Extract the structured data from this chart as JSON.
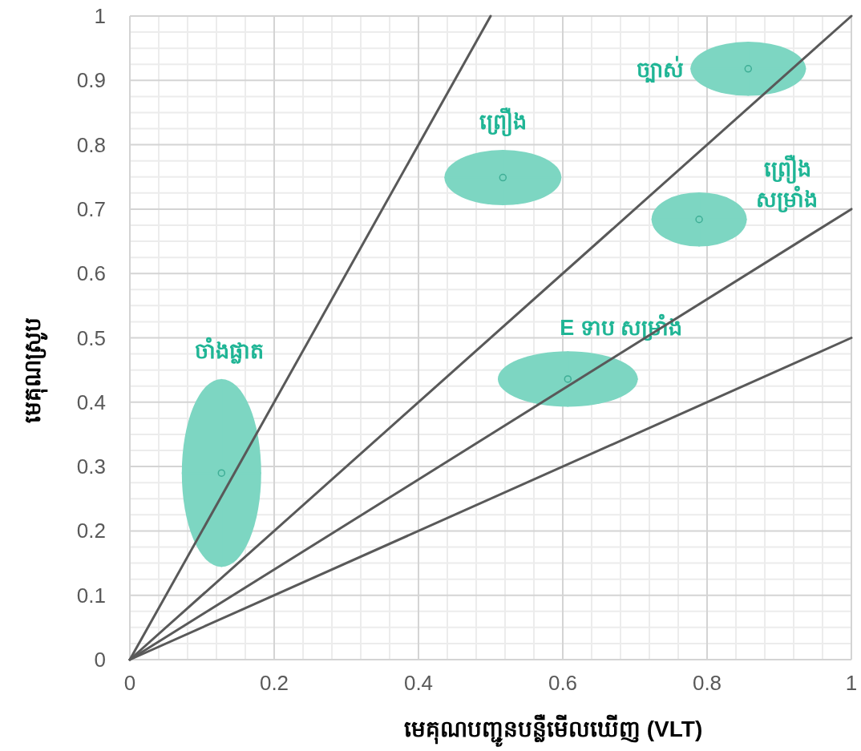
{
  "chart_data": {
    "type": "scatter",
    "xlabel": "មេគុណបញ្ជូនបន្លឺមើលឃើញ (VLT)",
    "ylabel": "មេគុណស្រូប",
    "xlim": [
      0,
      1
    ],
    "ylim": [
      0,
      1
    ],
    "xticks": [
      0,
      0.2,
      0.4,
      0.6,
      0.8,
      1
    ],
    "yticks": [
      0,
      0.1,
      0.2,
      0.3,
      0.4,
      0.5,
      0.6,
      0.7,
      0.8,
      0.9,
      1
    ],
    "grid": true,
    "series": [
      {
        "name": "ចាំងផ្លាត",
        "color": "#7dd6c2",
        "x": [
          0.127
        ],
        "values": [
          0.29
        ],
        "xerrors": [
          0.055
        ],
        "errors": [
          0.146
        ]
      },
      {
        "name": "ព្រឿង",
        "color": "#7dd6c2",
        "x": [
          0.517
        ],
        "values": [
          0.749
        ],
        "xerrors": [
          0.081
        ],
        "errors": [
          0.043
        ]
      },
      {
        "name": "ច្បាស់",
        "color": "#7dd6c2",
        "x": [
          0.857
        ],
        "values": [
          0.918
        ],
        "xerrors": [
          0.08
        ],
        "errors": [
          0.042
        ]
      },
      {
        "name": "ព្រឿង សម្រាំង",
        "color": "#7dd6c2",
        "x": [
          0.789
        ],
        "values": [
          0.684
        ],
        "xerrors": [
          0.066
        ],
        "errors": [
          0.042
        ]
      },
      {
        "name": "E ទាប សម្រាំង",
        "color": "#7dd6c2",
        "x": [
          0.607
        ],
        "values": [
          0.436
        ],
        "xerrors": [
          0.097
        ],
        "errors": [
          0.043
        ]
      },
      {
        "type": "line",
        "color": "#595959",
        "x": [
          0,
          0.5
        ],
        "values": [
          0,
          1
        ]
      },
      {
        "type": "line",
        "color": "#595959",
        "x": [
          0,
          1
        ],
        "values": [
          0,
          1
        ]
      },
      {
        "type": "line",
        "color": "#595959",
        "x": [
          0,
          1
        ],
        "values": [
          0,
          0.7
        ]
      },
      {
        "type": "line",
        "color": "#595959",
        "x": [
          0,
          1
        ],
        "values": [
          0,
          0.5
        ]
      }
    ]
  }
}
